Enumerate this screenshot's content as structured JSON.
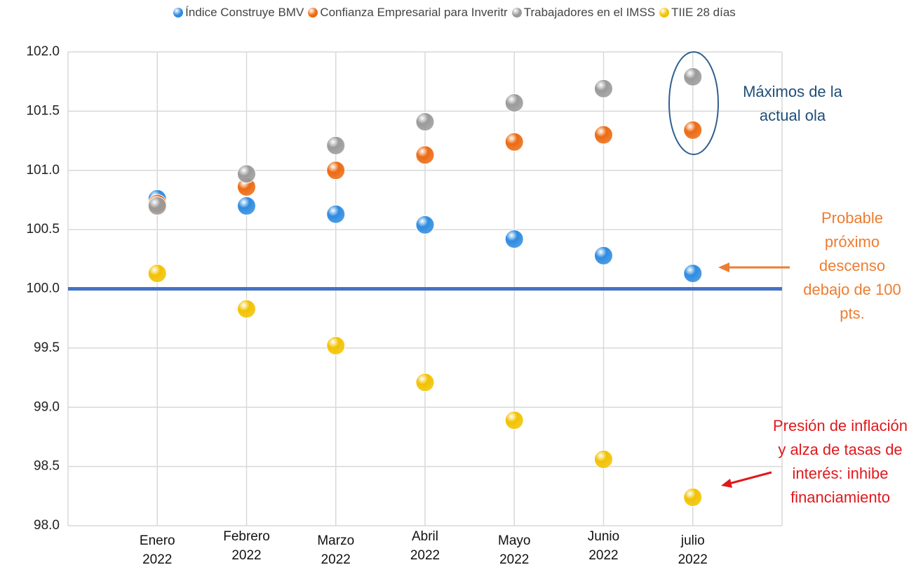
{
  "chart_data": {
    "type": "scatter",
    "categories": [
      "Enero 2022",
      "Febrero 2022",
      "Marzo 2022",
      "Abril 2022",
      "Mayo 2022",
      "Junio 2022",
      "julio 2022"
    ],
    "series": [
      {
        "name": "Índice Construye BMV",
        "color": "#2e8be0",
        "values": [
          100.76,
          100.7,
          100.63,
          100.54,
          100.42,
          100.28,
          100.13
        ]
      },
      {
        "name": "Confianza Empresarial para Inveritr",
        "color": "#ec6a12",
        "values": [
          100.72,
          100.86,
          101.0,
          101.13,
          101.24,
          101.3,
          101.34
        ]
      },
      {
        "name": "Trabajadores en el IMSS",
        "color": "#9a9a9a",
        "values": [
          100.7,
          100.97,
          101.21,
          101.41,
          101.57,
          101.69,
          101.79
        ]
      },
      {
        "name": "TIIE 28 días",
        "color": "#f2c200",
        "values": [
          100.13,
          99.83,
          99.52,
          99.21,
          98.89,
          98.56,
          98.24
        ]
      }
    ],
    "ylim": [
      98.0,
      102.0
    ],
    "yticks": [
      {
        "value": 98,
        "label": "98.0"
      },
      98.5,
      {
        "value": 99,
        "label": "99.0"
      },
      99.5,
      {
        "value": 100,
        "label": "100.0"
      },
      100.5,
      {
        "value": 101,
        "label": "101.0"
      },
      101.5,
      {
        "value": 102,
        "label": "102.0"
      }
    ],
    "grid": true,
    "reference_line": {
      "value": 100,
      "color": "#4472c4"
    },
    "annotations": [
      "Máximos de la actual ola",
      "Probable próximo descenso debajo de 100 pts.",
      "Presión de inflación y alza de tasas de interés: inhibe financiamiento"
    ]
  }
}
